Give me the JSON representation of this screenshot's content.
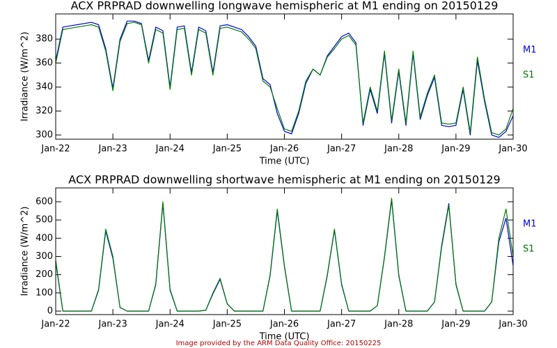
{
  "chart_data": [
    {
      "type": "line",
      "title": "ACX PRPRAD downwelling longwave hemispheric at M1 ending on 20150129",
      "x_label": "Time (UTC)",
      "y_label": "Irradiance (W/m^2)",
      "x": [
        0,
        0.125,
        0.25,
        0.375,
        0.5,
        0.625,
        0.75,
        0.875,
        1,
        1.125,
        1.25,
        1.375,
        1.5,
        1.625,
        1.75,
        1.875,
        2,
        2.125,
        2.25,
        2.375,
        2.5,
        2.625,
        2.75,
        2.875,
        3,
        3.125,
        3.25,
        3.375,
        3.5,
        3.625,
        3.75,
        3.875,
        4,
        4.125,
        4.25,
        4.375,
        4.5,
        4.625,
        4.75,
        4.875,
        5,
        5.125,
        5.25,
        5.375,
        5.5,
        5.625,
        5.75,
        5.875,
        6,
        6.125,
        6.25,
        6.375,
        6.5,
        6.625,
        6.75,
        6.875,
        7,
        7.125,
        7.25,
        7.375,
        7.5,
        7.625,
        7.75,
        7.875,
        8
      ],
      "series": [
        {
          "name": "M1",
          "color": "#0000dd",
          "values": [
            362,
            390,
            391,
            392,
            393,
            394,
            392,
            372,
            339,
            380,
            395,
            395,
            393,
            362,
            390,
            387,
            340,
            390,
            391,
            352,
            390,
            387,
            352,
            391,
            392,
            390,
            388,
            382,
            374,
            347,
            342,
            318,
            303,
            301,
            318,
            343,
            355,
            350,
            366,
            374,
            382,
            385,
            377,
            308,
            338,
            318,
            368,
            310,
            353,
            308,
            368,
            313,
            333,
            348,
            308,
            307,
            308,
            338,
            300,
            362,
            328,
            300,
            298,
            303,
            316
          ]
        },
        {
          "name": "S1",
          "color": "#007a00",
          "values": [
            360,
            388,
            389,
            390,
            391,
            392,
            390,
            370,
            337,
            378,
            393,
            394,
            392,
            360,
            388,
            385,
            338,
            388,
            389,
            350,
            388,
            385,
            350,
            389,
            390,
            388,
            386,
            380,
            372,
            345,
            340,
            322,
            305,
            303,
            320,
            345,
            355,
            350,
            365,
            372,
            380,
            383,
            375,
            310,
            340,
            320,
            370,
            312,
            355,
            310,
            370,
            315,
            335,
            350,
            310,
            309,
            310,
            340,
            302,
            365,
            330,
            302,
            300,
            305,
            322
          ]
        }
      ],
      "xlim": [
        0,
        8
      ],
      "xticks": [
        {
          "value": 0,
          "label": "Jan-22"
        },
        {
          "value": 1,
          "label": "Jan-23"
        },
        {
          "value": 2,
          "label": "Jan-24"
        },
        {
          "value": 3,
          "label": "Jan-25"
        },
        {
          "value": 4,
          "label": "Jan-26"
        },
        {
          "value": 5,
          "label": "Jan-27"
        },
        {
          "value": 6,
          "label": "Jan-28"
        },
        {
          "value": 7,
          "label": "Jan-29"
        },
        {
          "value": 8,
          "label": "Jan-30"
        }
      ],
      "ylim": [
        296.5,
        401
      ],
      "yticks": [
        300,
        320,
        340,
        360,
        380
      ]
    },
    {
      "type": "line",
      "title": "ACX PRPRAD downwelling shortwave hemispheric at M1 ending on 20150129",
      "x_label": "Time (UTC)",
      "y_label": "Irradiance (W/m^2)",
      "x": [
        0,
        0.125,
        0.25,
        0.375,
        0.5,
        0.625,
        0.75,
        0.875,
        1,
        1.125,
        1.25,
        1.375,
        1.5,
        1.625,
        1.75,
        1.875,
        2,
        2.125,
        2.25,
        2.375,
        2.5,
        2.625,
        2.75,
        2.875,
        3,
        3.125,
        3.25,
        3.375,
        3.5,
        3.625,
        3.75,
        3.875,
        4,
        4.125,
        4.25,
        4.375,
        4.5,
        4.625,
        4.75,
        4.875,
        5,
        5.125,
        5.25,
        5.375,
        5.5,
        5.625,
        5.75,
        5.875,
        6,
        6.125,
        6.25,
        6.375,
        6.5,
        6.625,
        6.75,
        6.875,
        7,
        7.125,
        7.25,
        7.375,
        7.5,
        7.625,
        7.75,
        7.875,
        8
      ],
      "series": [
        {
          "name": "M1",
          "color": "#0000dd",
          "values": [
            270,
            0,
            0,
            0,
            0,
            0,
            115,
            440,
            290,
            20,
            0,
            0,
            0,
            0,
            145,
            590,
            115,
            0,
            0,
            0,
            0,
            5,
            95,
            175,
            40,
            0,
            0,
            0,
            0,
            0,
            195,
            550,
            245,
            0,
            0,
            0,
            0,
            0,
            195,
            445,
            145,
            0,
            0,
            0,
            0,
            30,
            295,
            610,
            195,
            0,
            0,
            0,
            0,
            50,
            360,
            590,
            145,
            0,
            0,
            0,
            0,
            50,
            380,
            510,
            250
          ]
        },
        {
          "name": "S1",
          "color": "#007a00",
          "values": [
            280,
            0,
            0,
            0,
            0,
            0,
            120,
            450,
            300,
            20,
            0,
            0,
            0,
            0,
            150,
            600,
            120,
            0,
            0,
            0,
            0,
            5,
            100,
            180,
            40,
            0,
            0,
            0,
            0,
            0,
            200,
            560,
            250,
            0,
            0,
            0,
            0,
            0,
            200,
            450,
            150,
            0,
            0,
            0,
            0,
            30,
            300,
            620,
            200,
            0,
            0,
            0,
            0,
            50,
            350,
            580,
            150,
            0,
            0,
            0,
            0,
            50,
            400,
            560,
            300
          ]
        }
      ],
      "xlim": [
        0,
        8
      ],
      "xticks": [
        {
          "value": 0,
          "label": "Jan-22"
        },
        {
          "value": 1,
          "label": "Jan-23"
        },
        {
          "value": 2,
          "label": "Jan-24"
        },
        {
          "value": 3,
          "label": "Jan-25"
        },
        {
          "value": 4,
          "label": "Jan-26"
        },
        {
          "value": 5,
          "label": "Jan-27"
        },
        {
          "value": 6,
          "label": "Jan-28"
        },
        {
          "value": 7,
          "label": "Jan-29"
        },
        {
          "value": 8,
          "label": "Jan-30"
        }
      ],
      "ylim": [
        -19,
        676
      ],
      "yticks": [
        0,
        100,
        200,
        300,
        400,
        500,
        600
      ]
    }
  ],
  "footer": {
    "text": "Image provided by the ARM Data Quality Office: 20150225"
  }
}
